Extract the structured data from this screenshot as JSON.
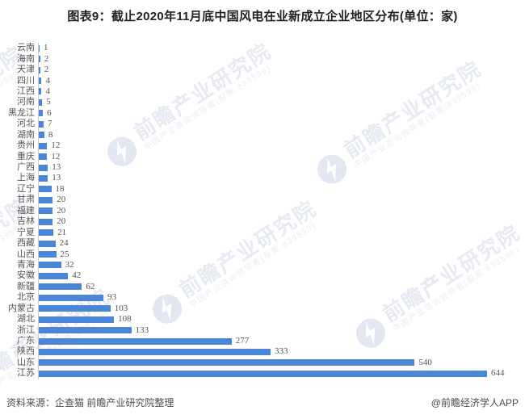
{
  "title": "图表9：截止2020年11月底中国风电在业新成立企业地区分布(单位：家)",
  "chart_data": {
    "type": "bar",
    "orientation": "horizontal",
    "title": "截止2020年11月底中国风电在业新成立企业地区分布",
    "unit": "家",
    "categories": [
      "云南",
      "海南",
      "天津",
      "四川",
      "江西",
      "河南",
      "黑龙江",
      "河北",
      "湖南",
      "贵州",
      "重庆",
      "广西",
      "上海",
      "辽宁",
      "甘肃",
      "福建",
      "吉林",
      "宁夏",
      "西藏",
      "山西",
      "青海",
      "安徽",
      "新疆",
      "北京",
      "内蒙古",
      "湖北",
      "浙江",
      "广东",
      "陕西",
      "山东",
      "江苏"
    ],
    "values": [
      1,
      2,
      2,
      4,
      4,
      5,
      6,
      7,
      8,
      12,
      12,
      13,
      13,
      18,
      20,
      20,
      20,
      21,
      24,
      25,
      32,
      42,
      62,
      93,
      103,
      108,
      133,
      277,
      333,
      540,
      644
    ],
    "value_labels": true,
    "xlim": [
      0,
      644
    ],
    "bar_color": "#4a86d8",
    "axis_color": "#cccccc",
    "label_color": "#555555",
    "grid": false,
    "legend": "none"
  },
  "footer": {
    "source": "资料来源：企查猫 前瞻产业研究院整理",
    "credit": "@前瞻经济学人APP"
  },
  "watermark": {
    "brand": "前瞻产业研究院",
    "tagline": "中国产业咨询领导者(股票:839599)",
    "logo_color": "#e3e7f1"
  }
}
